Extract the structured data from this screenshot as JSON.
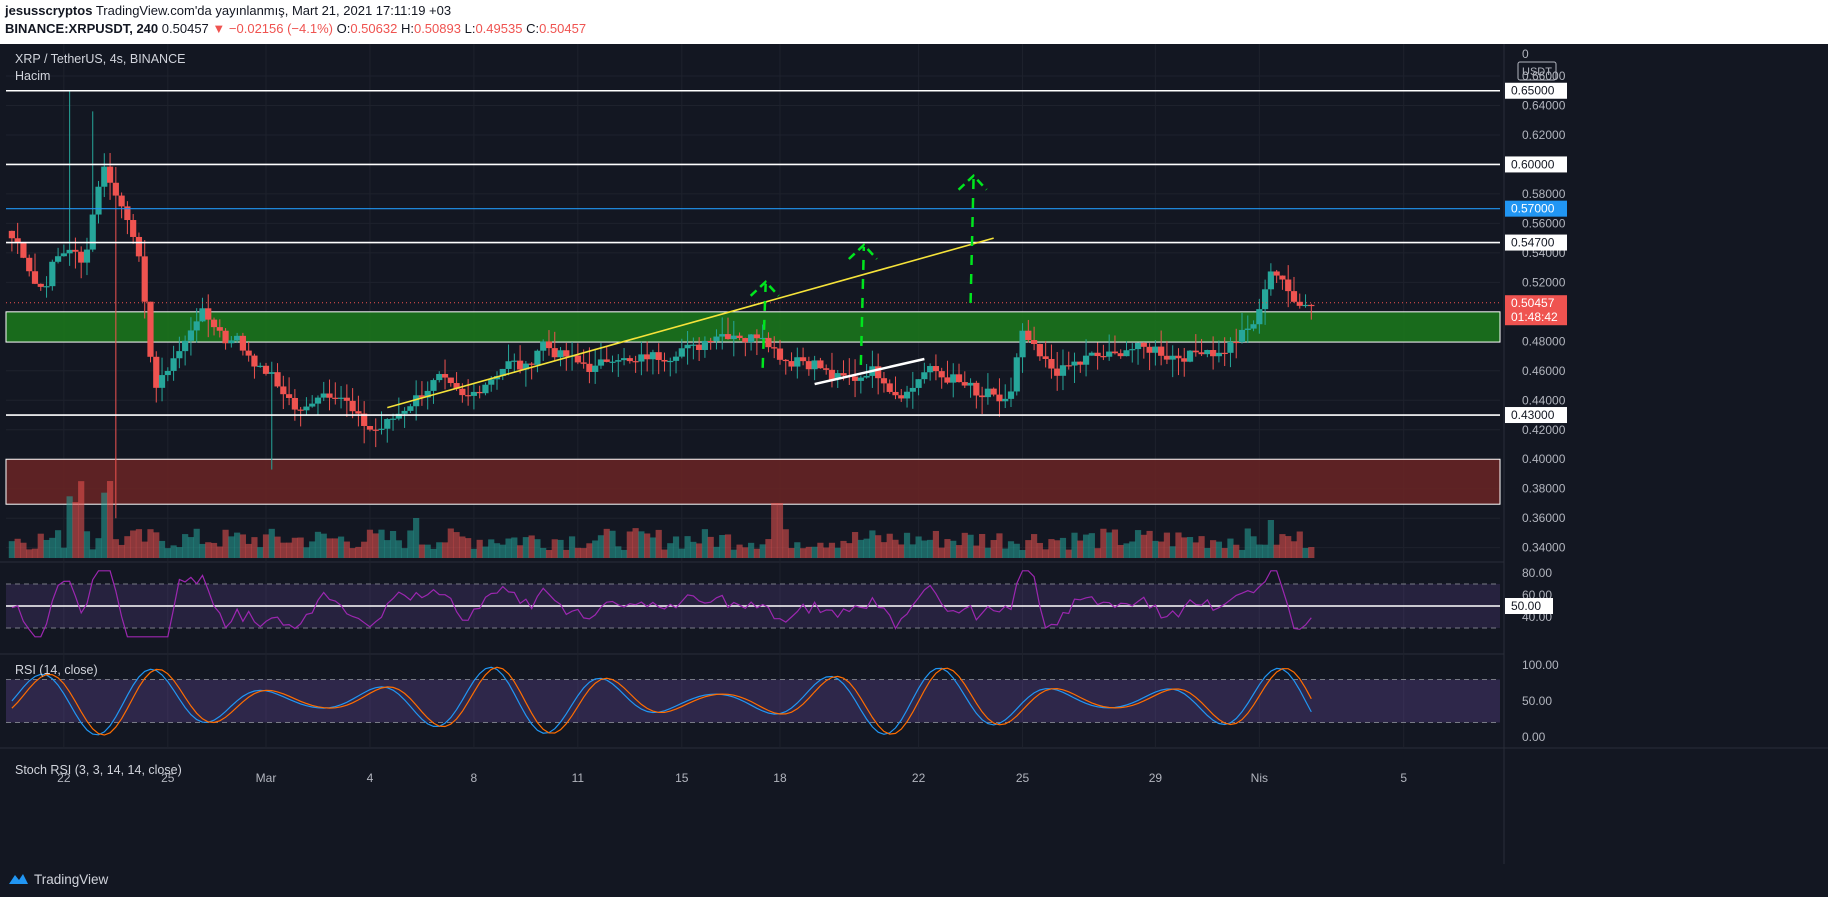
{
  "header": {
    "author": "jesusscryptos",
    "published": "TradingView.com'da yayınlanmış, Mart 21, 2021 17:11:19 +03",
    "symbol": "BINANCE:XRPUSDT, 240",
    "last": "0.50457",
    "change": "−0.02156 (−4.1%)",
    "open_label": "O:",
    "open": "0.50632",
    "high_label": "H:",
    "high": "0.50893",
    "low_label": "L:",
    "low": "0.49535",
    "close_label": "C:",
    "close": "0.50457"
  },
  "legend": {
    "title": "XRP / TetherUS, 4s, BINANCE",
    "volume": "Hacim",
    "rsi": "RSI (14, close)",
    "stoch": "Stoch RSI (3, 3, 14, 14, close)"
  },
  "footer": {
    "brand": "TradingView"
  },
  "chart_data": [
    {
      "type": "candlestick",
      "currency": "USDT",
      "axis_top_label": "0",
      "ylim": [
        0.333,
        0.679
      ],
      "y_ticks": [
        "0.66000",
        "0.64000",
        "0.62000",
        "0.58000",
        "0.56000",
        "0.54000",
        "0.52000",
        "0.48000",
        "0.46000",
        "0.44000",
        "0.42000",
        "0.40000",
        "0.38000",
        "0.36000",
        "0.34000"
      ],
      "x_ticks": [
        "22",
        "25",
        "Mar",
        "4",
        "8",
        "11",
        "15",
        "18",
        "22",
        "25",
        "29",
        "Nis",
        "5"
      ],
      "x_tick_index": [
        9,
        27,
        44,
        62,
        80,
        98,
        116,
        133,
        157,
        175,
        198,
        216,
        241
      ],
      "close_series": [
        0.55,
        0.545,
        0.53,
        0.515,
        0.52,
        0.535,
        0.54,
        0.545,
        0.53,
        0.55,
        0.585,
        0.6,
        0.58,
        0.57,
        0.56,
        0.53,
        0.48,
        0.445,
        0.46,
        0.47,
        0.475,
        0.49,
        0.5,
        0.495,
        0.49,
        0.48,
        0.485,
        0.475,
        0.47,
        0.46,
        0.46,
        0.45,
        0.445,
        0.435,
        0.43,
        0.44,
        0.445,
        0.445,
        0.445,
        0.44,
        0.43,
        0.425,
        0.42,
        0.42,
        0.425,
        0.43,
        0.435,
        0.44,
        0.445,
        0.45,
        0.455,
        0.45,
        0.445,
        0.44,
        0.445,
        0.45,
        0.455,
        0.46,
        0.465,
        0.465,
        0.46,
        0.47,
        0.48,
        0.475,
        0.47,
        0.47,
        0.465,
        0.465,
        0.46,
        0.465,
        0.47,
        0.47,
        0.465,
        0.465,
        0.47,
        0.47,
        0.47,
        0.47,
        0.475,
        0.475,
        0.475,
        0.48,
        0.485,
        0.485,
        0.485,
        0.485,
        0.48,
        0.485,
        0.485,
        0.475,
        0.47,
        0.465,
        0.47,
        0.465,
        0.465,
        0.46,
        0.455,
        0.455,
        0.455,
        0.455,
        0.46,
        0.46,
        0.455,
        0.445,
        0.445,
        0.445,
        0.455,
        0.46,
        0.46,
        0.455,
        0.455,
        0.45,
        0.45,
        0.44,
        0.445,
        0.44,
        0.44,
        0.445,
        0.485,
        0.48,
        0.47,
        0.465,
        0.46,
        0.46,
        0.465,
        0.465,
        0.47,
        0.47,
        0.47,
        0.47,
        0.475,
        0.475,
        0.475,
        0.475,
        0.475,
        0.47,
        0.47,
        0.47,
        0.47,
        0.475,
        0.475,
        0.47,
        0.475,
        0.48,
        0.485,
        0.49,
        0.5,
        0.53,
        0.525,
        0.515,
        0.51,
        0.505,
        0.5045
      ],
      "candles_high": 0.65,
      "candles_low": 0.393,
      "levels": [
        {
          "price": 0.65,
          "label": "0.65000",
          "color": "#ffffff"
        },
        {
          "price": 0.6,
          "label": "0.60000",
          "color": "#ffffff"
        },
        {
          "price": 0.57,
          "label": "0.57000",
          "color": "#2196f3"
        },
        {
          "price": 0.547,
          "label": "0.54700",
          "color": "#ffffff"
        },
        {
          "price": 0.43,
          "label": "0.43000",
          "color": "#ffffff"
        }
      ],
      "last_price": {
        "label": "0.50457",
        "countdown": "01:48:42",
        "color": "#ef5350"
      },
      "zones": [
        {
          "from": 0.4795,
          "to": 0.5,
          "color": "#1b7a1b"
        },
        {
          "from": 0.3695,
          "to": 0.4,
          "color": "#6b2424"
        }
      ]
    },
    {
      "type": "line",
      "name": "RSI (14, close)",
      "ylim": [
        10,
        90
      ],
      "y_ticks": [
        "80.00",
        "60.00",
        "40.00"
      ],
      "level_label": "50.00",
      "bands": [
        70,
        30
      ],
      "mid": 50
    },
    {
      "type": "line",
      "name": "Stoch RSI (3, 3, 14, 14, close)",
      "ylim": [
        -10,
        110
      ],
      "y_ticks": [
        "100.00",
        "50.00",
        "0.00"
      ],
      "bands": [
        80,
        20
      ]
    }
  ],
  "colors": {
    "up": "#26a69a",
    "down": "#ef5350",
    "bg": "#131722",
    "rsi": "#9c27b0",
    "stoch_k": "#2196f3",
    "stoch_d": "#ff6d00",
    "trend_yellow": "#f6e33a",
    "arrow_green": "#00e61e"
  },
  "icons": {
    "logo": "tradingview-cloud-icon"
  }
}
